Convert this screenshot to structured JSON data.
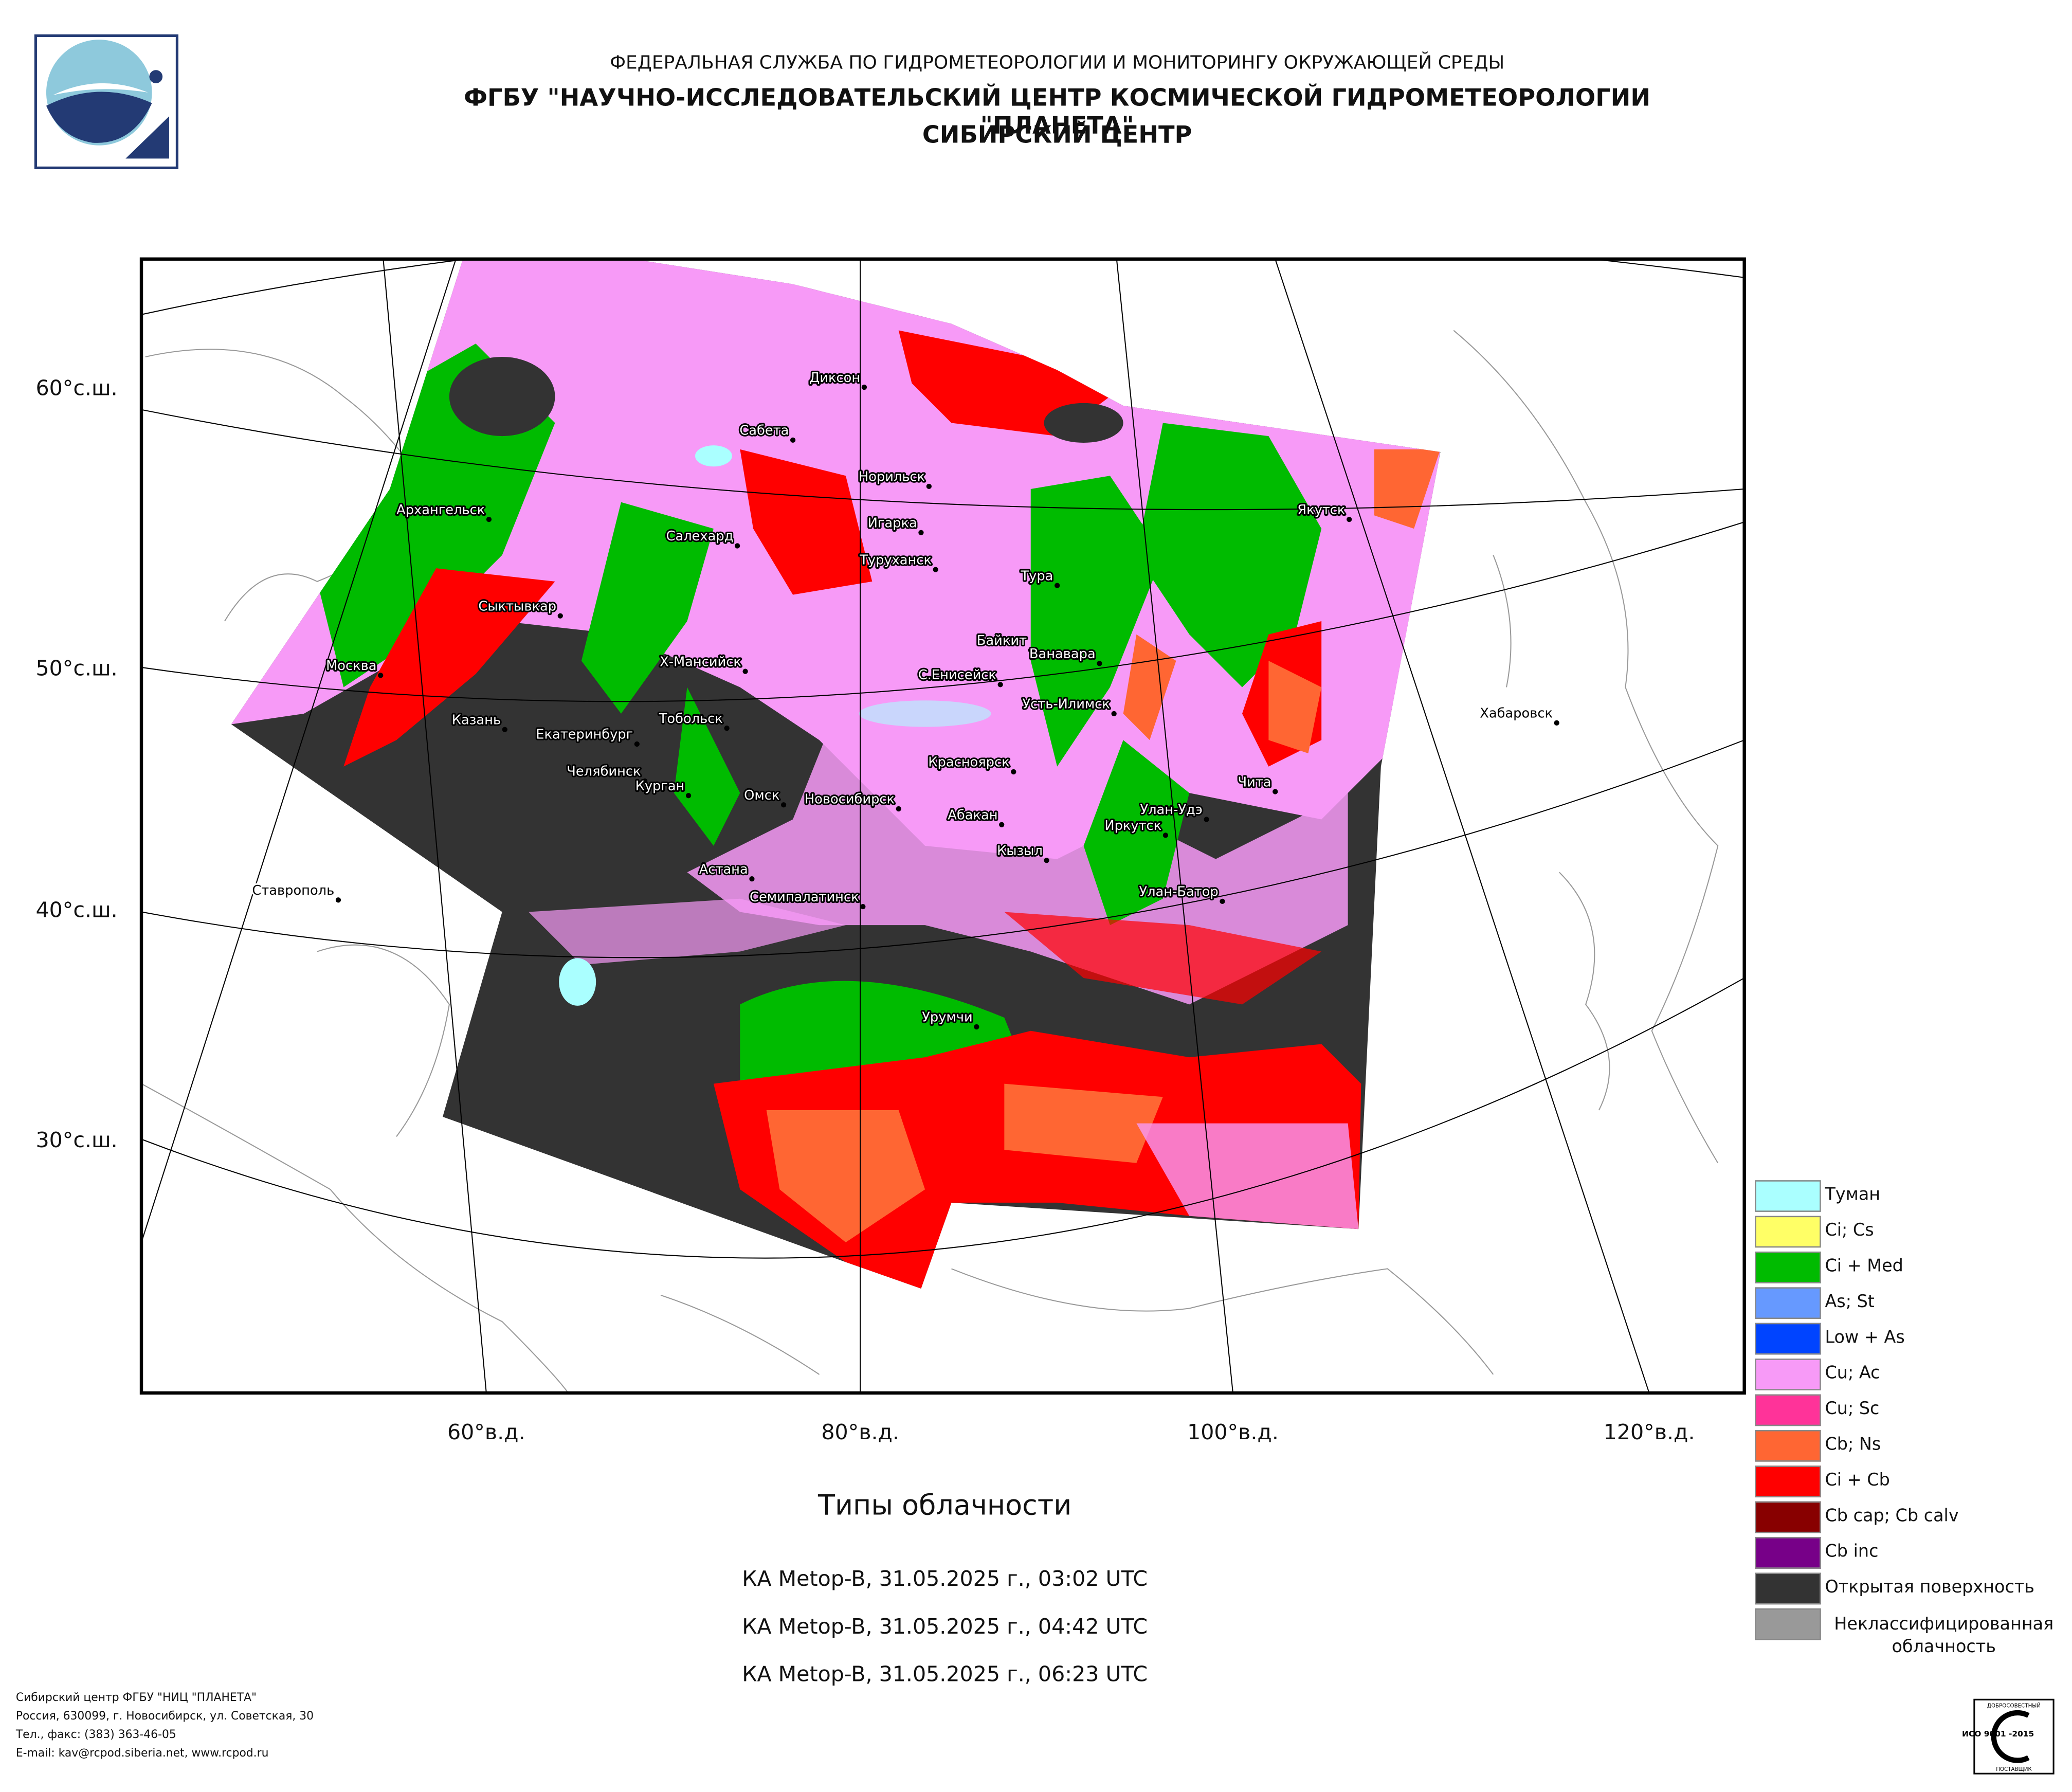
{
  "header": {
    "agency": "ФЕДЕРАЛЬНАЯ СЛУЖБА ПО ГИДРОМЕТЕОРОЛОГИИ И МОНИТОРИНГУ ОКРУЖАЮЩЕЙ СРЕДЫ",
    "institute": "ФГБУ \"НАУЧНО-ИССЛЕДОВАТЕЛЬСКИЙ ЦЕНТР КОСМИЧЕСКОЙ ГИДРОМЕТЕОРОЛОГИИ \"ПЛАНЕТА\"",
    "center": "СИБИРСКИЙ ЦЕНТР"
  },
  "map": {
    "lat_labels": [
      "60°с.ш.",
      "50°с.ш.",
      "40°с.ш.",
      "30°с.ш."
    ],
    "lon_labels": [
      "60°в.д.",
      "80°в.д.",
      "100°в.д.",
      "120°в.д."
    ],
    "cities": [
      "Диксон",
      "Сабета",
      "Норильск",
      "Игарка",
      "Туруханск",
      "Тура",
      "Якутск",
      "Архангельск",
      "Салехард",
      "Сыктывкар",
      "Москва",
      "Х-Мансийск",
      "Байкит",
      "Ванавара",
      "С.Енисейск",
      "Усть-Илимск",
      "Хабаровск",
      "Казань",
      "Екатеринбург",
      "Тобольск",
      "Красноярск",
      "Чита",
      "Челябинск",
      "Курган",
      "Омск",
      "Новосибирск",
      "Абакан",
      "Улан-Удэ",
      "Иркутск",
      "Кызыл",
      "Астана",
      "Семипалатинск",
      "Улан-Батор",
      "Ставрополь",
      "Урумчи"
    ]
  },
  "legend": [
    {
      "label": "Туман",
      "color": "#aaffff"
    },
    {
      "label": "Ci; Cs",
      "color": "#ffff66"
    },
    {
      "label": "Ci + Med",
      "color": "#00bb00"
    },
    {
      "label": "As; St",
      "color": "#6699ff"
    },
    {
      "label": "Low + As",
      "color": "#0044ff"
    },
    {
      "label": "Cu; Ac",
      "color": "#f79af7"
    },
    {
      "label": "Cu; Sc",
      "color": "#ff3399"
    },
    {
      "label": "Cb; Ns",
      "color": "#ff6633"
    },
    {
      "label": "Ci + Cb",
      "color": "#ff0000"
    },
    {
      "label": "Cb cap; Cb calv",
      "color": "#880000"
    },
    {
      "label": "Cb inc",
      "color": "#770088"
    },
    {
      "label": "Открытая поверхность",
      "color": "#333333"
    },
    {
      "label": "Неклассифицированная облачность",
      "color": "#999999"
    }
  ],
  "title": "Типы облачности",
  "passes": [
    "КА Metop-B, 31.05.2025 г., 03:02 UTC",
    "КА Metop-B, 31.05.2025 г., 04:42 UTC",
    "КА Metop-B, 31.05.2025 г., 06:23 UTC"
  ],
  "footer": [
    "Сибирский центр ФГБУ \"НИЦ \"ПЛАНЕТА\"",
    "Россия, 630099, г. Новосибирск, ул. Советская, 30",
    "Тел., факс: (383) 363-46-05",
    "E-mail: kav@rcpod.siberia.net, www.rcpod.ru"
  ],
  "certificate": {
    "top": "ДОБРОСОВЕСТНЫЙ",
    "code": "ИСО 9001 -2015",
    "bottom": "ПОСТАВЩИК"
  }
}
